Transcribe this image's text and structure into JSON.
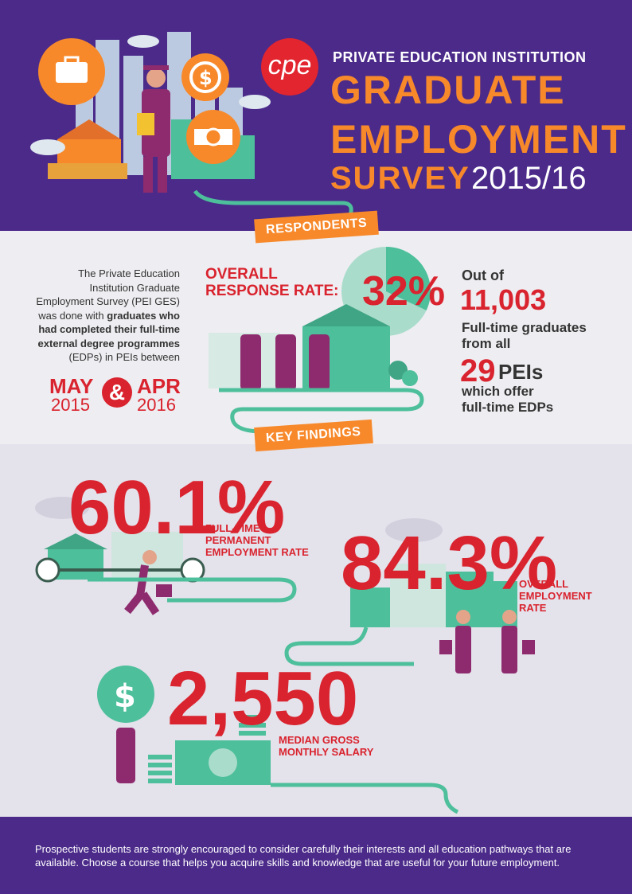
{
  "header": {
    "brand_logo": "cpe",
    "subtitle": "PRIVATE EDUCATION INSTITUTION",
    "title_line1": "GRADUATE",
    "title_line2": "EMPLOYMENT",
    "title_line3": "SURVEY",
    "year": "2015/16"
  },
  "respondents": {
    "ribbon": "RESPONDENTS",
    "intro_part1": "The Private Education Institution Graduate Employment Survey (PEI GES) was done with ",
    "intro_bold": "graduates who had completed their full-time external degree programmes",
    "intro_part2": " (EDPs) in PEIs between",
    "start_month": "MAY",
    "start_year": "2015",
    "amp": "&",
    "end_month": "APR",
    "end_year": "2016",
    "response_label_line1": "OVERALL",
    "response_label_line2": "RESPONSE RATE:",
    "response_rate": "32%",
    "response_rate_fraction": 0.32,
    "out_of": "Out of",
    "graduates": "11,003",
    "graduates_label_line1": "Full-time graduates",
    "graduates_label_line2": "from all",
    "peis_number": "29",
    "peis_label": "PEIs",
    "peis_sub_line1": "which offer",
    "peis_sub_line2": "full-time EDPs"
  },
  "findings": {
    "ribbon": "KEY FINDINGS",
    "fulltime_value": "60.1%",
    "fulltime_label_line1": "FULL-TIME",
    "fulltime_label_line2": "PERMANENT",
    "fulltime_label_line3": "EMPLOYMENT RATE",
    "overall_value": "84.3%",
    "overall_label_line1": "OVERALL",
    "overall_label_line2": "EMPLOYMENT",
    "overall_label_line3": "RATE",
    "salary_value": "2,550",
    "salary_label_line1": "MEDIAN GROSS",
    "salary_label_line2": "MONTHLY SALARY",
    "dollar_sign": "$"
  },
  "footer": {
    "text": "Prospective students are strongly encouraged to consider carefully their interests and all education pathways that are available. Choose a course that helps you acquire skills and knowledge that are useful for your future employment."
  },
  "colors": {
    "purple": "#4b2a8a",
    "orange": "#f7892b",
    "red": "#d9232e",
    "teal": "#4dbf9b",
    "magenta": "#8e2b6e"
  }
}
